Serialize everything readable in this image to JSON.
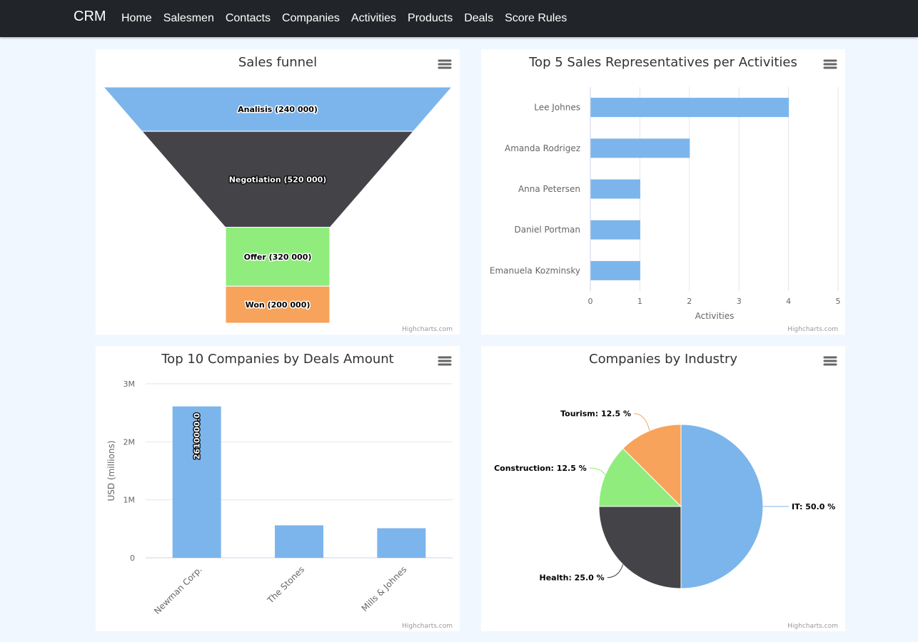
{
  "nav": {
    "brand": "CRM",
    "links": [
      "Home",
      "Salesmen",
      "Contacts",
      "Companies",
      "Activities",
      "Products",
      "Deals",
      "Score Rules"
    ]
  },
  "credits": "Highcharts.com",
  "icons": {
    "menu": "hamburger-menu-icon"
  },
  "chart_data": [
    {
      "type": "funnel",
      "title": "Sales funnel",
      "categories": [
        "Analisis",
        "Negotiation",
        "Offer",
        "Won"
      ],
      "values": [
        240000,
        520000,
        320000,
        200000
      ],
      "labels": [
        "Analisis (240 000)",
        "Negotiation (520 000)",
        "Offer (320 000)",
        "Won (200 000)"
      ],
      "colors": [
        "#7cb5ec",
        "#434348",
        "#90ed7d",
        "#f7a35c"
      ]
    },
    {
      "type": "bar",
      "title": "Top 5 Sales Representatives per Activities",
      "categories": [
        "Lee Johnes",
        "Amanda Rodrigez",
        "Anna Petersen",
        "Daniel Portman",
        "Emanuela Kozminsky"
      ],
      "values": [
        4,
        2,
        1,
        1,
        1
      ],
      "xlabel": "Activities",
      "xlim": [
        0,
        5
      ],
      "ticks": [
        0,
        1,
        2,
        3,
        4,
        5
      ],
      "color": "#7cb5ec",
      "grid": true
    },
    {
      "type": "column",
      "title": "Top 10 Companies by Deals Amount",
      "categories": [
        "Newman Corp.",
        "The Stones",
        "Mills & Johnes"
      ],
      "values": [
        2610000,
        560000,
        510000
      ],
      "data_labels": [
        "2610000.0",
        "",
        ""
      ],
      "ylabel": "USD (millions)",
      "ylim": [
        0,
        3000000
      ],
      "ticks": [
        0,
        1000000,
        2000000,
        3000000
      ],
      "tick_labels": [
        "0",
        "1M",
        "2M",
        "3M"
      ],
      "color": "#7cb5ec",
      "grid": true
    },
    {
      "type": "pie",
      "title": "Companies by Industry",
      "slices": [
        {
          "name": "IT",
          "value": 50.0,
          "label": "IT: 50.0 %",
          "color": "#7cb5ec"
        },
        {
          "name": "Health",
          "value": 25.0,
          "label": "Health: 25.0 %",
          "color": "#434348"
        },
        {
          "name": "Construction",
          "value": 12.5,
          "label": "Construction: 12.5 %",
          "color": "#90ed7d"
        },
        {
          "name": "Tourism",
          "value": 12.5,
          "label": "Tourism: 12.5 %",
          "color": "#f7a35c"
        }
      ]
    }
  ]
}
